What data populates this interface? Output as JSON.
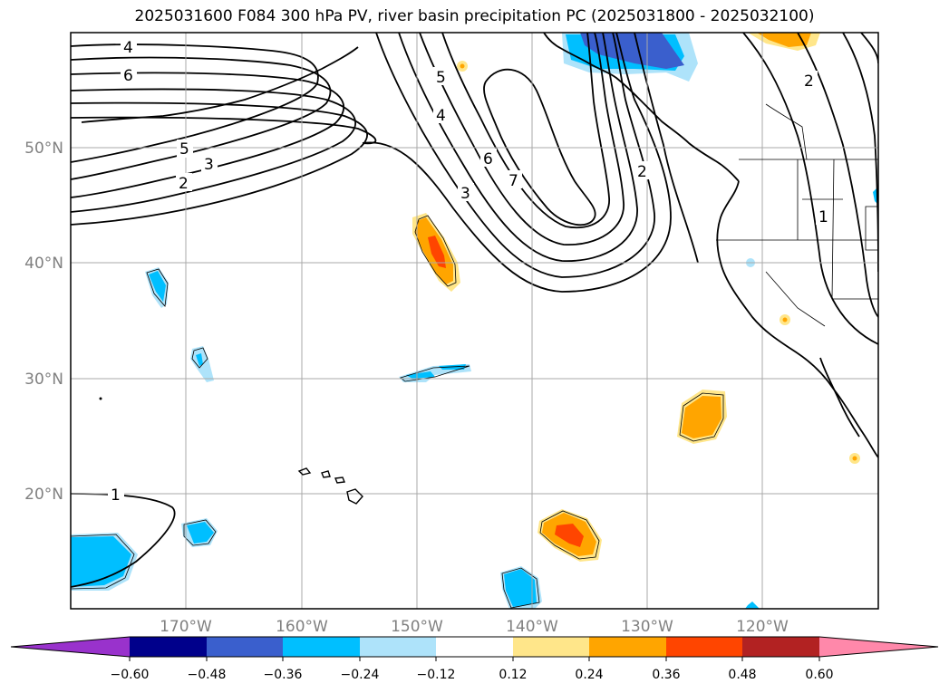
{
  "title": "2025031600 F084 300 hPa PV, river basin precipitation PC (2025031800 - 2025032100)",
  "lat_labels": [
    "50°N",
    "40°N",
    "30°N",
    "20°N"
  ],
  "lon_labels": [
    "170°W",
    "160°W",
    "150°W",
    "140°W",
    "130°W",
    "120°W"
  ],
  "contour_labels": [
    "4",
    "6",
    "5",
    "3",
    "2",
    "5",
    "4",
    "3",
    "6",
    "7",
    "2",
    "2",
    "1",
    "1"
  ],
  "colorbar": {
    "ticks": [
      "−0.60",
      "−0.48",
      "−0.36",
      "−0.24",
      "−0.12",
      "0.12",
      "0.24",
      "0.36",
      "0.48",
      "0.60"
    ],
    "colors": [
      "#9932cc",
      "#00008b",
      "#3a5fcd",
      "#00bfff",
      "#aee3fa",
      "#ffffff",
      "#ffe68a",
      "#ffa500",
      "#ff4500",
      "#b22222",
      "#ff88aa"
    ]
  },
  "colors": {
    "neg_strong": "#3a5fcd",
    "neg_mid": "#00bfff",
    "neg_weak": "#aee3fa",
    "pos_weak": "#ffe68a",
    "pos_mid": "#ffa500",
    "pos_strong": "#ff4500"
  }
}
